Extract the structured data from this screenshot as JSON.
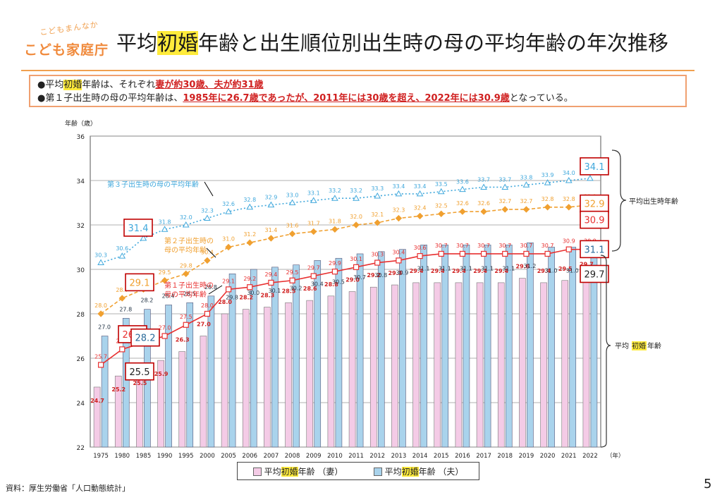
{
  "header": {
    "logo_small": "こどもまんなか",
    "logo_main": "こども家庭庁",
    "title_pre": "平均",
    "title_hl": "初婚",
    "title_post": "年齢と出生順位別出生時の母の平均年齢の年次推移"
  },
  "summary": {
    "line1_pre": "●平均",
    "line1_hl": "初婚",
    "line1_mid": "年齢は、それぞれ",
    "line1_red": "妻が約30歳、夫が約31歳",
    "line2_pre": "●第１子出生時の母の平均年齢は、",
    "line2_red": "1985年に26.7歳であったが、2011年には30歳を超え、2022年には30.9歳",
    "line2_post": "となっている。"
  },
  "legend": {
    "wife_pre": "平均",
    "wife_hl": "初婚",
    "wife_post": "年齢 （妻）",
    "husband_pre": "平均",
    "husband_hl": "初婚",
    "husband_post": "年齢 （夫）"
  },
  "source": "資料：厚生労働省「人口動態統計」",
  "page_number": "5",
  "colors": {
    "wife_bar": "#f4cbe6",
    "husband_bar": "#a9d3ec",
    "first_child": "#e83030",
    "second_child": "#f0a030",
    "third_child": "#40a8dc",
    "callout_border": "#c00000"
  },
  "chart_data": {
    "type": "bar",
    "ylabel": "年齢（歳）",
    "xunit": "（年）",
    "ylim": [
      22,
      36
    ],
    "yticks": [
      22,
      24,
      26,
      28,
      30,
      32,
      34,
      36
    ],
    "grid": true,
    "categories": [
      "1975",
      "1980",
      "1985",
      "1990",
      "1995",
      "2000",
      "2005",
      "2006",
      "2007",
      "2008",
      "2009",
      "2010",
      "2011",
      "2012",
      "2013",
      "2014",
      "2015",
      "2016",
      "2017",
      "2018",
      "2019",
      "2020",
      "2021",
      "2022"
    ],
    "series": [
      {
        "name": "平均初婚年齢（妻）",
        "kind": "bar",
        "values": [
          24.7,
          25.2,
          25.5,
          25.9,
          26.3,
          27.0,
          28.0,
          28.2,
          28.3,
          28.5,
          28.6,
          28.8,
          29.0,
          29.2,
          29.3,
          29.4,
          29.4,
          29.4,
          29.4,
          29.4,
          29.6,
          29.4,
          29.5,
          29.7
        ]
      },
      {
        "name": "平均初婚年齢（夫）",
        "kind": "bar",
        "values": [
          27.0,
          27.8,
          28.2,
          28.4,
          28.5,
          28.8,
          29.8,
          30.0,
          30.1,
          30.2,
          30.4,
          30.5,
          30.7,
          30.8,
          30.9,
          31.1,
          31.1,
          31.1,
          31.1,
          31.1,
          31.2,
          31.0,
          31.0,
          31.1
        ]
      },
      {
        "name": "第１子出生時の母の平均年齢",
        "kind": "line",
        "values": [
          25.7,
          26.4,
          26.7,
          27.0,
          27.5,
          28.0,
          29.1,
          29.2,
          29.4,
          29.5,
          29.7,
          29.9,
          30.1,
          30.3,
          30.4,
          30.6,
          30.7,
          30.7,
          30.7,
          30.7,
          30.7,
          30.7,
          30.9,
          30.9
        ]
      },
      {
        "name": "第２子出生時の母の平均年齢",
        "kind": "line",
        "values": [
          28.0,
          28.7,
          29.1,
          29.5,
          29.8,
          30.4,
          31.0,
          31.2,
          31.4,
          31.6,
          31.7,
          31.8,
          32.0,
          32.1,
          32.3,
          32.4,
          32.5,
          32.6,
          32.6,
          32.7,
          32.7,
          32.8,
          32.8,
          32.9
        ]
      },
      {
        "name": "第３子出生時の母の平均年齢",
        "kind": "line",
        "values": [
          30.3,
          30.6,
          31.4,
          31.8,
          32.0,
          32.3,
          32.6,
          32.8,
          32.9,
          33.0,
          33.1,
          33.2,
          33.2,
          33.3,
          33.4,
          33.4,
          33.5,
          33.6,
          33.7,
          33.7,
          33.8,
          33.9,
          34.0,
          34.1
        ]
      }
    ],
    "annotations": {
      "third_child_label": "第３子出生時の母の平均年齢",
      "second_child_label_1": "第２子出生時の",
      "second_child_label_2": "母の平均年齢",
      "first_child_label_1": "第１子出生時の",
      "first_child_label_2": "母の平均年齢",
      "brace_top": "平均出生時年齢",
      "brace_bottom_pre": "平均",
      "brace_bottom_hl": "初婚",
      "brace_bottom_post": "年齢"
    },
    "callouts": [
      {
        "series": 2,
        "index": 2,
        "label": "26.7"
      },
      {
        "series": 1,
        "index": 2,
        "label": "28.2"
      },
      {
        "series": 0,
        "index": 2,
        "label": "25.5"
      },
      {
        "series": 3,
        "index": 2,
        "label": "29.1"
      },
      {
        "series": 4,
        "index": 2,
        "label": "31.4"
      },
      {
        "series": 4,
        "index": 23,
        "label": "34.1"
      },
      {
        "series": 3,
        "index": 23,
        "label": "32.9"
      },
      {
        "series": 2,
        "index": 23,
        "label": "30.9"
      },
      {
        "series": 1,
        "index": 23,
        "label": "31.1"
      },
      {
        "series": 0,
        "index": 23,
        "label": "29.7"
      }
    ]
  }
}
